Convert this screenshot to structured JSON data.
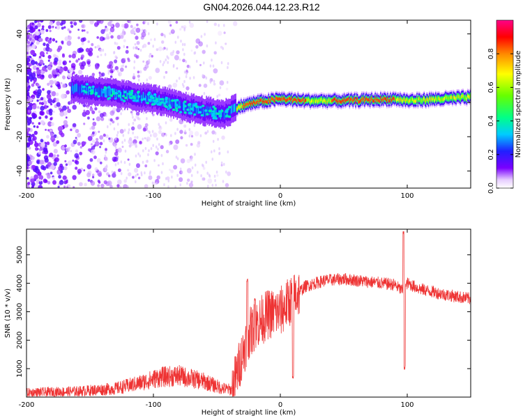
{
  "title": "GN04.2026.044.12.23.R12",
  "colors": {
    "snr_line": "#ee3333",
    "axis": "#000000",
    "cmap_base": "#6a00ff"
  },
  "chart_data": [
    {
      "type": "heatmap",
      "title": "GN04.2026.044.12.23.R12",
      "xlabel": "Height of straight line (km)",
      "ylabel": "Frequency (Hz)",
      "xlim": [
        -200,
        150
      ],
      "ylim": [
        -50,
        48
      ],
      "xticks": [
        -200,
        -100,
        0,
        100
      ],
      "yticks": [
        -40,
        -20,
        0,
        20,
        40
      ],
      "colorbar": {
        "label": "Normalized spectral amplitude",
        "range": [
          0.0,
          1.0
        ],
        "ticks": [
          "0.0",
          "0.2",
          "0.4",
          "0.6",
          "0.8"
        ]
      },
      "ridge": {
        "description_points_x": [
          -160,
          -140,
          -120,
          -100,
          -80,
          -60,
          -45,
          -35,
          -20,
          0,
          20,
          50,
          90,
          100,
          150
        ],
        "description_points_y": [
          8,
          6,
          4,
          2,
          -2,
          -5,
          -7,
          -3,
          0,
          2,
          1,
          1,
          2,
          1,
          3
        ]
      }
    },
    {
      "type": "line",
      "xlabel": "Height of straight line (km)",
      "ylabel": "SNR (10 * v/v)",
      "xlim": [
        -200,
        150
      ],
      "ylim": [
        0,
        5900
      ],
      "xticks": [
        -200,
        -100,
        0,
        100
      ],
      "yticks": [
        1000,
        2000,
        3000,
        4000,
        5000
      ],
      "envelope_x": [
        -200,
        -160,
        -130,
        -110,
        -95,
        -80,
        -60,
        -45,
        -38,
        -30,
        -25,
        -20,
        -10,
        0,
        10,
        20,
        35,
        50,
        70,
        90,
        97,
        100,
        110,
        130,
        150
      ],
      "envelope_y": [
        150,
        200,
        300,
        500,
        700,
        750,
        550,
        300,
        250,
        1500,
        2200,
        2500,
        2900,
        3000,
        3500,
        3900,
        4100,
        4150,
        4050,
        3950,
        3700,
        4000,
        3800,
        3600,
        3450
      ],
      "spikes": [
        {
          "x": -26,
          "y": 4200
        },
        {
          "x": -20,
          "y": 3500
        },
        {
          "x": 10,
          "y": 800
        },
        {
          "x": 97,
          "y": 5850
        },
        {
          "x": 98,
          "y": 1100
        }
      ]
    }
  ]
}
